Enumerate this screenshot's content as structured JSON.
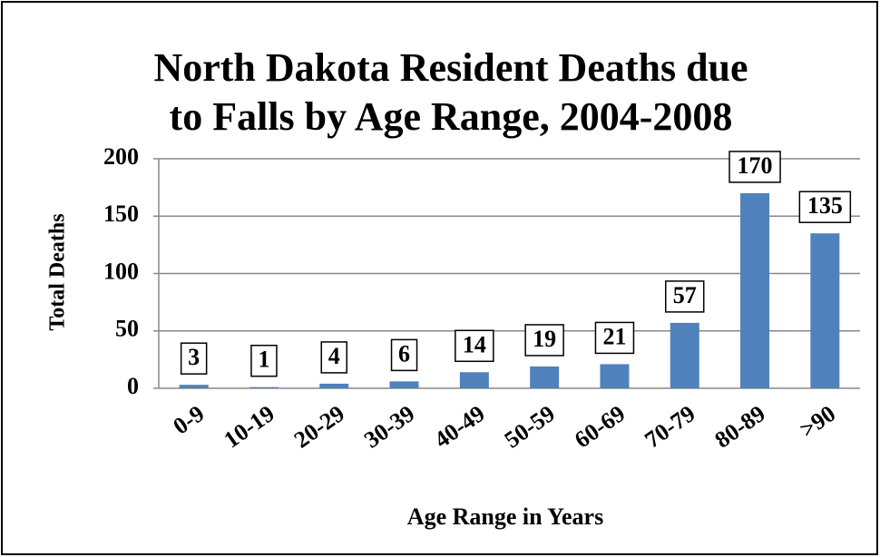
{
  "chart_data": {
    "type": "bar",
    "title": [
      "North Dakota Resident Deaths due",
      "to Falls by Age Range, 2004-2008"
    ],
    "x_label": "Age Range in Years",
    "y_label": "Total Deaths",
    "categories": [
      "0-9",
      "10-19",
      "20-29",
      "30-39",
      "40-49",
      "50-59",
      "60-69",
      "70-79",
      "80-89",
      ">90"
    ],
    "values": [
      3,
      1,
      4,
      6,
      14,
      19,
      21,
      57,
      170,
      135
    ],
    "color": "#4f81bd",
    "ylim": [
      0,
      200
    ],
    "yticks": [
      0,
      50,
      100,
      150,
      200
    ],
    "grid": true
  }
}
